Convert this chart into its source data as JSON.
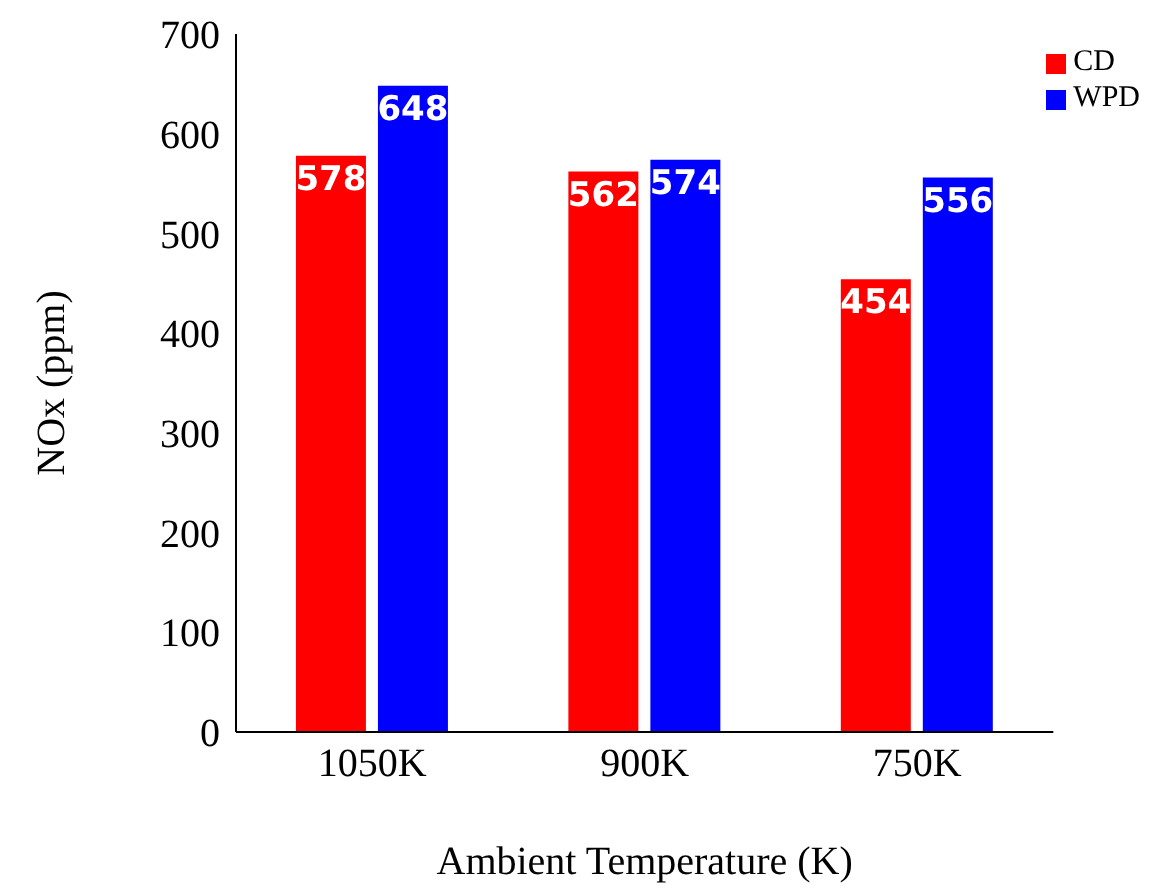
{
  "chart_data": {
    "type": "bar",
    "xlabel": "Ambient Temperature (K)",
    "ylabel": "NOx (ppm)",
    "categories": [
      "1050K",
      "900K",
      "750K"
    ],
    "series": [
      {
        "name": "CD",
        "color": "#ff0000",
        "values": [
          578,
          562,
          454
        ]
      },
      {
        "name": "WPD",
        "color": "#0000ff",
        "values": [
          648,
          574,
          556
        ]
      }
    ],
    "ylim": [
      0,
      700
    ],
    "yticks": [
      0,
      100,
      200,
      300,
      400,
      500,
      600,
      700
    ],
    "data_labels": true,
    "legend": "top right",
    "grid": false
  }
}
